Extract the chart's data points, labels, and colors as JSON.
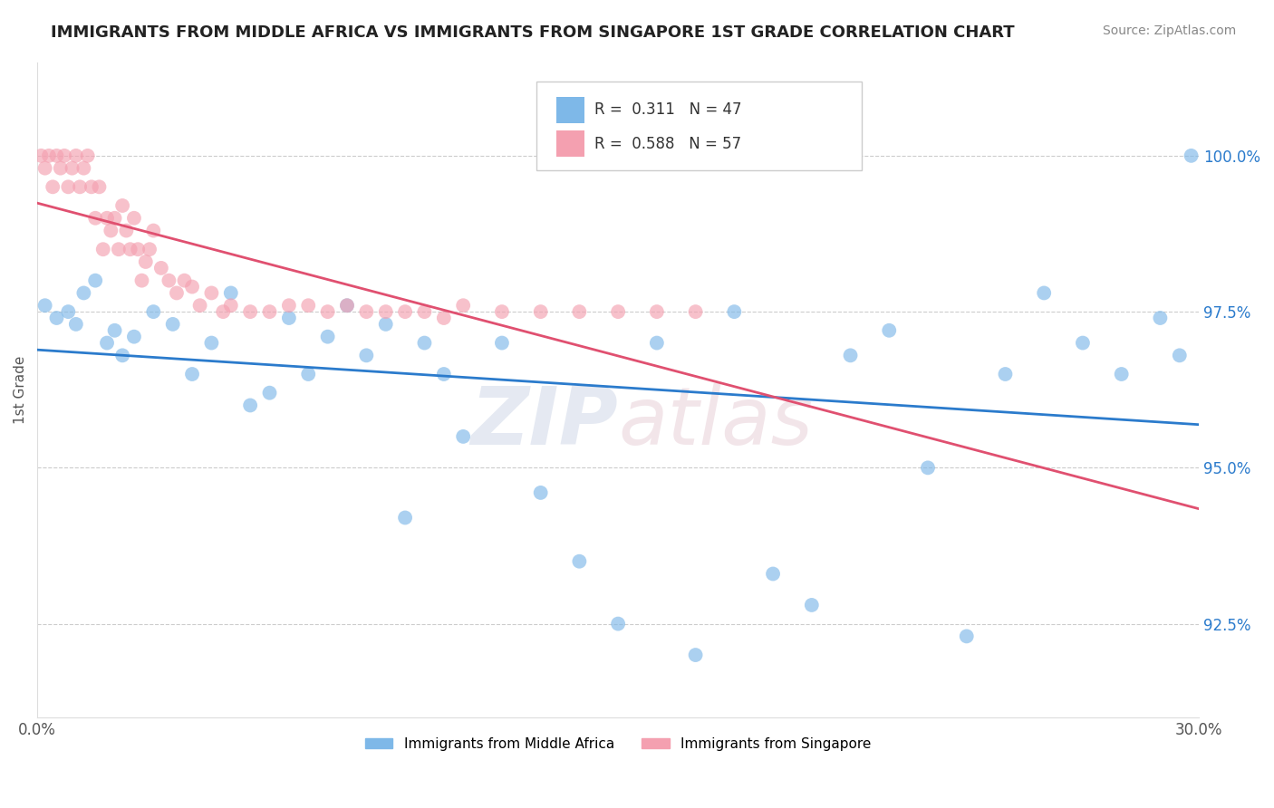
{
  "title": "IMMIGRANTS FROM MIDDLE AFRICA VS IMMIGRANTS FROM SINGAPORE 1ST GRADE CORRELATION CHART",
  "source": "Source: ZipAtlas.com",
  "ylabel": "1st Grade",
  "xlim": [
    0.0,
    30.0
  ],
  "ylim": [
    91.0,
    101.5
  ],
  "yticks": [
    92.5,
    95.0,
    97.5,
    100.0
  ],
  "ytick_labels": [
    "92.5%",
    "95.0%",
    "97.5%",
    "100.0%"
  ],
  "xticks": [
    0.0,
    30.0
  ],
  "xtick_labels": [
    "0.0%",
    "30.0%"
  ],
  "legend_blue_r": "0.311",
  "legend_blue_n": "47",
  "legend_pink_r": "0.588",
  "legend_pink_n": "57",
  "legend_label_blue": "Immigrants from Middle Africa",
  "legend_label_pink": "Immigrants from Singapore",
  "blue_color": "#7EB8E8",
  "pink_color": "#F4A0B0",
  "blue_line_color": "#2B7BCC",
  "pink_line_color": "#E05070",
  "blue_scatter_x": [
    0.2,
    0.5,
    0.8,
    1.0,
    1.2,
    1.5,
    1.8,
    2.0,
    2.2,
    2.5,
    3.0,
    3.5,
    4.0,
    4.5,
    5.0,
    5.5,
    6.0,
    6.5,
    7.0,
    7.5,
    8.0,
    8.5,
    9.0,
    9.5,
    10.0,
    10.5,
    11.0,
    12.0,
    13.0,
    14.0,
    15.0,
    16.0,
    17.0,
    18.0,
    19.0,
    20.0,
    21.0,
    22.0,
    23.0,
    24.0,
    25.0,
    26.0,
    27.0,
    28.0,
    29.0,
    29.5,
    29.8
  ],
  "blue_scatter_y": [
    97.6,
    97.4,
    97.5,
    97.3,
    97.8,
    98.0,
    97.0,
    97.2,
    96.8,
    97.1,
    97.5,
    97.3,
    96.5,
    97.0,
    97.8,
    96.0,
    96.2,
    97.4,
    96.5,
    97.1,
    97.6,
    96.8,
    97.3,
    94.2,
    97.0,
    96.5,
    95.5,
    97.0,
    94.6,
    93.5,
    92.5,
    97.0,
    92.0,
    97.5,
    93.3,
    92.8,
    96.8,
    97.2,
    95.0,
    92.3,
    96.5,
    97.8,
    97.0,
    96.5,
    97.4,
    96.8,
    100.0
  ],
  "pink_scatter_x": [
    0.1,
    0.2,
    0.3,
    0.4,
    0.5,
    0.6,
    0.7,
    0.8,
    0.9,
    1.0,
    1.1,
    1.2,
    1.3,
    1.4,
    1.5,
    1.6,
    1.7,
    1.8,
    1.9,
    2.0,
    2.1,
    2.2,
    2.3,
    2.4,
    2.5,
    2.6,
    2.7,
    2.8,
    2.9,
    3.0,
    3.2,
    3.4,
    3.6,
    3.8,
    4.0,
    4.2,
    4.5,
    4.8,
    5.0,
    5.5,
    6.0,
    6.5,
    7.0,
    7.5,
    8.0,
    8.5,
    9.0,
    9.5,
    10.0,
    10.5,
    11.0,
    12.0,
    13.0,
    14.0,
    15.0,
    16.0,
    17.0
  ],
  "pink_scatter_y": [
    100.0,
    99.8,
    100.0,
    99.5,
    100.0,
    99.8,
    100.0,
    99.5,
    99.8,
    100.0,
    99.5,
    99.8,
    100.0,
    99.5,
    99.0,
    99.5,
    98.5,
    99.0,
    98.8,
    99.0,
    98.5,
    99.2,
    98.8,
    98.5,
    99.0,
    98.5,
    98.0,
    98.3,
    98.5,
    98.8,
    98.2,
    98.0,
    97.8,
    98.0,
    97.9,
    97.6,
    97.8,
    97.5,
    97.6,
    97.5,
    97.5,
    97.6,
    97.6,
    97.5,
    97.6,
    97.5,
    97.5,
    97.5,
    97.5,
    97.4,
    97.6,
    97.5,
    97.5,
    97.5,
    97.5,
    97.5,
    97.5
  ],
  "watermark_zip": "ZIP",
  "watermark_atlas": "atlas",
  "background_color": "#FFFFFF"
}
